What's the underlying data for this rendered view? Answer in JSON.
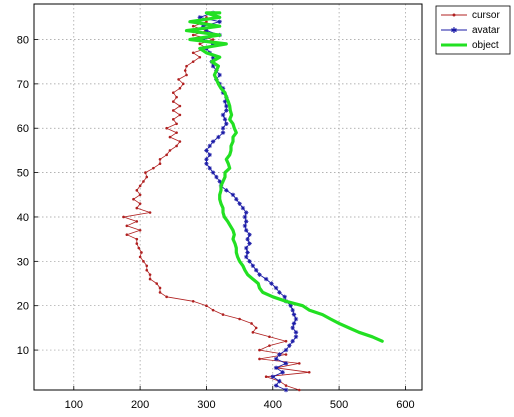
{
  "chart_data": {
    "type": "line",
    "xlim": [
      40,
      625
    ],
    "ylim": [
      1,
      88
    ],
    "xticks": [
      100,
      200,
      300,
      400,
      500,
      600
    ],
    "yticks": [
      10,
      20,
      30,
      40,
      50,
      60,
      70,
      80
    ],
    "grid": true,
    "legend_position": "top-right",
    "series": [
      {
        "name": "cursor",
        "color": "#b02020",
        "marker": "dot",
        "points": [
          [
            440,
            1
          ],
          [
            420,
            2
          ],
          [
            410,
            3
          ],
          [
            390,
            4
          ],
          [
            455,
            5
          ],
          [
            405,
            6
          ],
          [
            440,
            7
          ],
          [
            380,
            8
          ],
          [
            420,
            9
          ],
          [
            380,
            10
          ],
          [
            395,
            11
          ],
          [
            420,
            12
          ],
          [
            395,
            13
          ],
          [
            370,
            14
          ],
          [
            375,
            15
          ],
          [
            368,
            16
          ],
          [
            350,
            17
          ],
          [
            325,
            18
          ],
          [
            310,
            19
          ],
          [
            300,
            20
          ],
          [
            280,
            21
          ],
          [
            240,
            22
          ],
          [
            230,
            23
          ],
          [
            230,
            24
          ],
          [
            225,
            25
          ],
          [
            215,
            26
          ],
          [
            215,
            27
          ],
          [
            210,
            28
          ],
          [
            210,
            29
          ],
          [
            205,
            30
          ],
          [
            200,
            31
          ],
          [
            202,
            32
          ],
          [
            198,
            33
          ],
          [
            195,
            34
          ],
          [
            195,
            35
          ],
          [
            180,
            36
          ],
          [
            200,
            37
          ],
          [
            180,
            38
          ],
          [
            195,
            39
          ],
          [
            175,
            40
          ],
          [
            215,
            41
          ],
          [
            195,
            42
          ],
          [
            200,
            43
          ],
          [
            190,
            44
          ],
          [
            200,
            45
          ],
          [
            195,
            46
          ],
          [
            200,
            47
          ],
          [
            205,
            48
          ],
          [
            210,
            49
          ],
          [
            208,
            50
          ],
          [
            220,
            51
          ],
          [
            230,
            52
          ],
          [
            230,
            53
          ],
          [
            240,
            54
          ],
          [
            245,
            55
          ],
          [
            255,
            56
          ],
          [
            260,
            57
          ],
          [
            245,
            58
          ],
          [
            255,
            59
          ],
          [
            240,
            60
          ],
          [
            255,
            61
          ],
          [
            250,
            62
          ],
          [
            260,
            63
          ],
          [
            250,
            64
          ],
          [
            260,
            65
          ],
          [
            250,
            66
          ],
          [
            255,
            67
          ],
          [
            250,
            68
          ],
          [
            260,
            69
          ],
          [
            265,
            70
          ],
          [
            258,
            71
          ],
          [
            270,
            72
          ],
          [
            268,
            73
          ],
          [
            270,
            74
          ],
          [
            280,
            75
          ],
          [
            290,
            76
          ],
          [
            280,
            77
          ],
          [
            300,
            78
          ],
          [
            290,
            79
          ],
          [
            310,
            80
          ],
          [
            280,
            81
          ],
          [
            300,
            82
          ],
          [
            280,
            83
          ],
          [
            300,
            84
          ],
          [
            300,
            85
          ]
        ]
      },
      {
        "name": "avatar",
        "color": "#1a1aa6",
        "marker": "star",
        "points": [
          [
            420,
            1
          ],
          [
            405,
            2
          ],
          [
            410,
            3
          ],
          [
            400,
            4
          ],
          [
            415,
            5
          ],
          [
            405,
            6
          ],
          [
            420,
            7
          ],
          [
            405,
            8
          ],
          [
            410,
            9
          ],
          [
            420,
            10
          ],
          [
            425,
            11
          ],
          [
            430,
            12
          ],
          [
            435,
            13
          ],
          [
            435,
            14
          ],
          [
            430,
            15
          ],
          [
            432,
            16
          ],
          [
            435,
            17
          ],
          [
            432,
            18
          ],
          [
            430,
            19
          ],
          [
            427,
            20
          ],
          [
            420,
            21
          ],
          [
            418,
            22
          ],
          [
            410,
            23
          ],
          [
            405,
            24
          ],
          [
            398,
            25
          ],
          [
            390,
            26
          ],
          [
            380,
            27
          ],
          [
            375,
            28
          ],
          [
            370,
            29
          ],
          [
            365,
            30
          ],
          [
            360,
            31
          ],
          [
            362,
            32
          ],
          [
            360,
            33
          ],
          [
            365,
            34
          ],
          [
            362,
            35
          ],
          [
            365,
            36
          ],
          [
            360,
            37
          ],
          [
            358,
            38
          ],
          [
            360,
            39
          ],
          [
            358,
            40
          ],
          [
            360,
            41
          ],
          [
            355,
            42
          ],
          [
            350,
            43
          ],
          [
            345,
            44
          ],
          [
            340,
            45
          ],
          [
            330,
            46
          ],
          [
            322,
            47
          ],
          [
            320,
            48
          ],
          [
            315,
            49
          ],
          [
            310,
            50
          ],
          [
            305,
            51
          ],
          [
            300,
            52
          ],
          [
            300,
            53
          ],
          [
            305,
            54
          ],
          [
            300,
            55
          ],
          [
            305,
            56
          ],
          [
            310,
            57
          ],
          [
            318,
            58
          ],
          [
            325,
            59
          ],
          [
            325,
            60
          ],
          [
            330,
            61
          ],
          [
            328,
            62
          ],
          [
            325,
            63
          ],
          [
            330,
            64
          ],
          [
            330,
            65
          ],
          [
            328,
            66
          ],
          [
            330,
            67
          ],
          [
            325,
            68
          ],
          [
            325,
            69
          ],
          [
            320,
            70
          ],
          [
            315,
            71
          ],
          [
            320,
            72
          ],
          [
            315,
            73
          ],
          [
            310,
            74
          ],
          [
            308,
            75
          ],
          [
            310,
            76
          ],
          [
            305,
            77
          ],
          [
            300,
            78
          ],
          [
            310,
            79
          ],
          [
            295,
            80
          ],
          [
            320,
            81
          ],
          [
            300,
            82
          ],
          [
            295,
            83
          ],
          [
            320,
            84
          ],
          [
            290,
            85
          ],
          [
            310,
            86
          ]
        ]
      },
      {
        "name": "object",
        "color": "#22e022",
        "marker": "none",
        "points": [
          [
            565,
            12
          ],
          [
            550,
            13
          ],
          [
            530,
            14
          ],
          [
            515,
            15
          ],
          [
            500,
            16
          ],
          [
            487,
            17
          ],
          [
            475,
            18
          ],
          [
            455,
            19
          ],
          [
            445,
            20
          ],
          [
            420,
            21
          ],
          [
            400,
            22
          ],
          [
            385,
            23
          ],
          [
            380,
            24
          ],
          [
            378,
            25
          ],
          [
            370,
            26
          ],
          [
            362,
            27
          ],
          [
            358,
            28
          ],
          [
            355,
            29
          ],
          [
            350,
            30
          ],
          [
            347,
            31
          ],
          [
            345,
            32
          ],
          [
            345,
            33
          ],
          [
            343,
            34
          ],
          [
            340,
            35
          ],
          [
            342,
            36
          ],
          [
            340,
            37
          ],
          [
            336,
            38
          ],
          [
            332,
            39
          ],
          [
            327,
            40
          ],
          [
            325,
            41
          ],
          [
            325,
            42
          ],
          [
            322,
            43
          ],
          [
            320,
            44
          ],
          [
            320,
            45
          ],
          [
            322,
            46
          ],
          [
            322,
            47
          ],
          [
            325,
            48
          ],
          [
            328,
            49
          ],
          [
            328,
            50
          ],
          [
            335,
            51
          ],
          [
            333,
            52
          ],
          [
            330,
            53
          ],
          [
            335,
            54
          ],
          [
            337,
            55
          ],
          [
            337,
            56
          ],
          [
            340,
            57
          ],
          [
            340,
            58
          ],
          [
            345,
            59
          ],
          [
            342,
            60
          ],
          [
            340,
            61
          ],
          [
            335,
            62
          ],
          [
            338,
            63
          ],
          [
            336,
            64
          ],
          [
            335,
            65
          ],
          [
            333,
            66
          ],
          [
            330,
            67
          ],
          [
            328,
            68
          ],
          [
            322,
            69
          ],
          [
            318,
            70
          ],
          [
            315,
            71
          ],
          [
            312,
            72
          ],
          [
            315,
            73
          ],
          [
            318,
            74
          ],
          [
            308,
            75
          ],
          [
            320,
            76
          ],
          [
            300,
            77
          ],
          [
            290,
            78
          ],
          [
            330,
            79
          ],
          [
            275,
            80
          ],
          [
            320,
            81
          ],
          [
            270,
            82
          ],
          [
            320,
            83
          ],
          [
            275,
            84
          ],
          [
            320,
            85
          ],
          [
            300,
            86
          ],
          [
            320,
            86
          ]
        ]
      }
    ]
  }
}
